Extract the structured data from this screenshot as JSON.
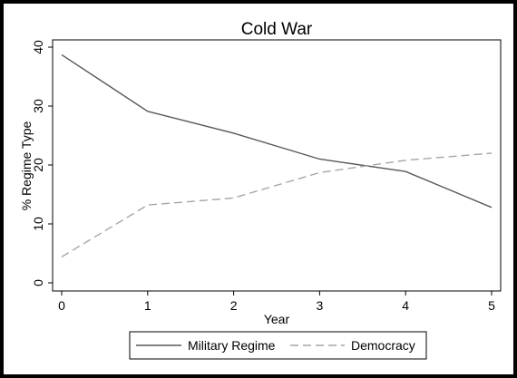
{
  "chart_data": {
    "type": "line",
    "title": "Cold War",
    "xlabel": "Year",
    "ylabel": "% Regime Type",
    "x": [
      0,
      1,
      2,
      3,
      4,
      5
    ],
    "xlim": [
      0,
      5
    ],
    "ylim": [
      0,
      40
    ],
    "xticks": [
      0,
      1,
      2,
      3,
      4,
      5
    ],
    "yticks": [
      0,
      10,
      20,
      30,
      40
    ],
    "grid": false,
    "legend_position": "bottom",
    "series": [
      {
        "name": "Military Regime",
        "values": [
          38.7,
          29.1,
          25.4,
          21.0,
          18.9,
          12.8
        ],
        "color": "#595959",
        "dash": "solid"
      },
      {
        "name": "Democracy",
        "values": [
          4.4,
          13.2,
          14.4,
          18.7,
          20.8,
          22.0
        ],
        "color": "#a6a6a6",
        "dash": "dashed"
      }
    ]
  }
}
